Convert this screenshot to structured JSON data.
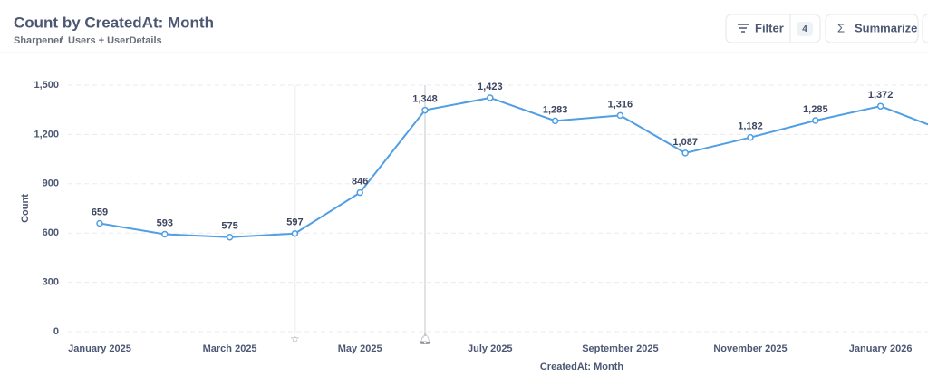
{
  "header": {
    "title": "Count by CreatedAt: Month",
    "breadcrumb": [
      "Sharpener",
      "/",
      "Users + UserDetails"
    ]
  },
  "toolbar": {
    "filter": "Filter",
    "filter_count": "4",
    "summarize": "Summarize"
  },
  "chart_data": {
    "type": "line",
    "x_label": "CreatedAt: Month",
    "y_label": "Count",
    "categories": [
      "January 2025",
      null,
      "March 2025",
      null,
      "May 2025",
      null,
      "July 2025",
      null,
      "September 2025",
      null,
      "November 2025",
      null,
      "January 2026",
      null
    ],
    "values": [
      659,
      593,
      575,
      597,
      846,
      1348,
      1423,
      1283,
      1316,
      1087,
      1182,
      1285,
      1372,
      1220
    ],
    "value_labels": [
      "659",
      "593",
      "575",
      "597",
      "846",
      "1,348",
      "1,423",
      "1,283",
      "1,316",
      "1,087",
      "1,182",
      "1,285",
      "1,372",
      null
    ],
    "color": "#509ee3",
    "ylim": [
      0,
      1500
    ],
    "yticks": [
      0,
      300,
      600,
      900,
      {
        "value": 1200,
        "label": "1,200"
      },
      {
        "value": 1500,
        "label": "1,500"
      }
    ],
    "grid": true
  }
}
